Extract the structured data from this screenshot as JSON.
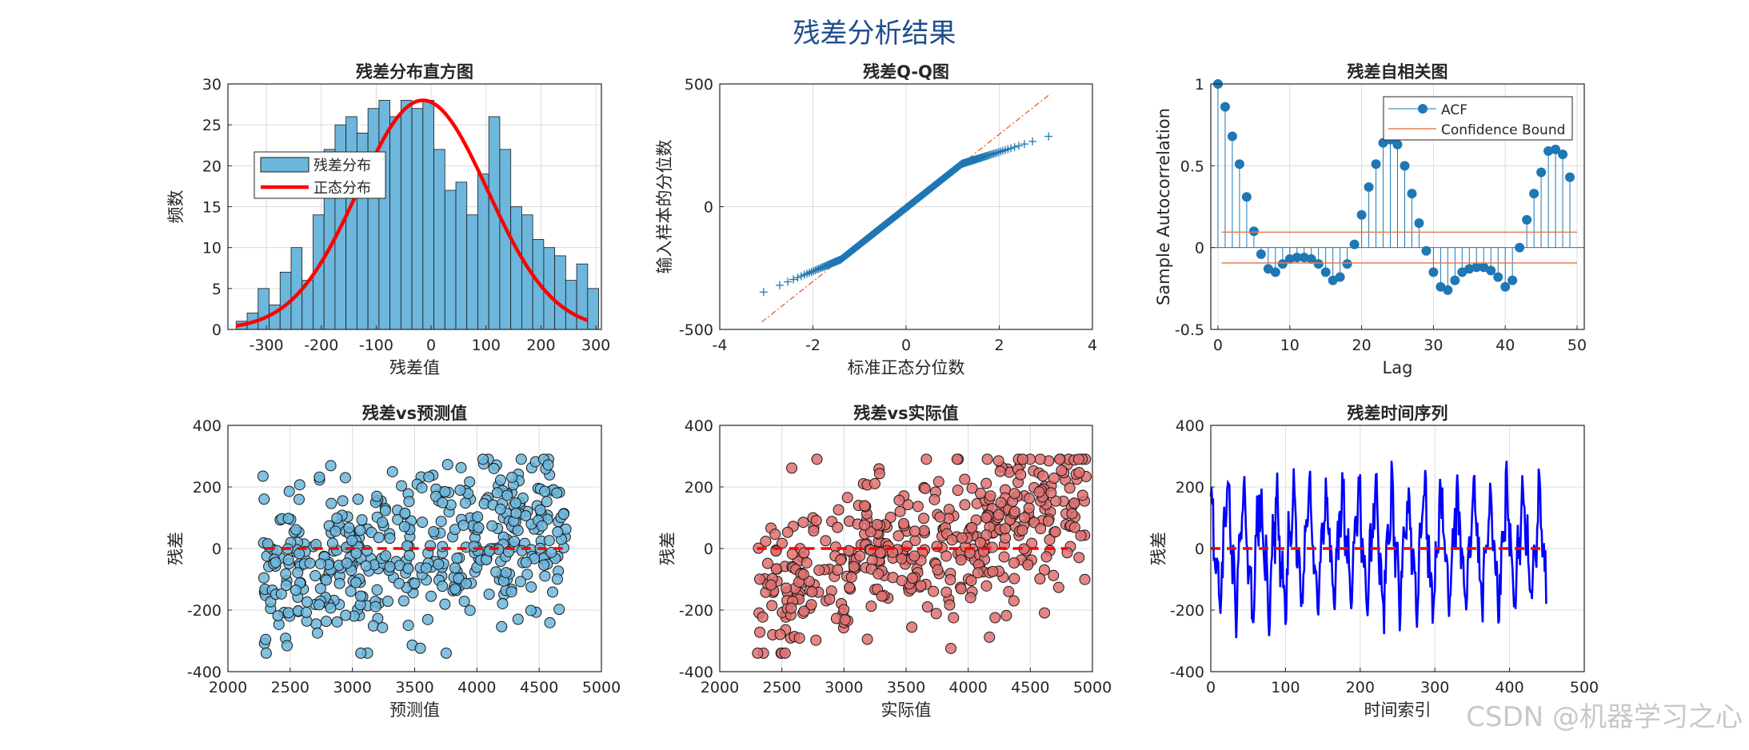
{
  "figure_title": "残差分析结果",
  "watermark": "CSDN @机器学习之心",
  "colors": {
    "hist_fill": "#6db6dc",
    "normal_curve": "#ff0000",
    "qq_marker": "#1f77b4",
    "qq_line": "#e6551d",
    "acf_stem": "#1f77b4",
    "conf_bound": "#e67e50",
    "scatter_pred": "#6db6dc",
    "scatter_actual": "#e07070",
    "zero_line": "#ff0000",
    "ts_line": "#0000ff",
    "title": "#1f4e8c"
  },
  "chart_data": [
    {
      "id": "hist",
      "type": "bar",
      "title": "残差分布直方图",
      "xlabel": "残差值",
      "ylabel": "频数",
      "xlim": [
        -370,
        310
      ],
      "ylim": [
        0,
        30
      ],
      "xticks": [
        -300,
        -200,
        -100,
        0,
        100,
        200,
        300
      ],
      "yticks": [
        0,
        5,
        10,
        15,
        20,
        25,
        30
      ],
      "bin_start": -355,
      "bin_width": 20,
      "counts": [
        1,
        2,
        5,
        3,
        7,
        10,
        6,
        14,
        22,
        25,
        26,
        24,
        27,
        28,
        26,
        28,
        27,
        28,
        22,
        17,
        18,
        14,
        19,
        26,
        22,
        15,
        14,
        11,
        10,
        9,
        6,
        8,
        5
      ],
      "normal": {
        "mean": -15,
        "peak": 28,
        "sd": 118
      },
      "legend": [
        "残差分布",
        "正态分布"
      ]
    },
    {
      "id": "qq",
      "type": "scatter",
      "title": "残差Q-Q图",
      "xlabel": "标准正态分位数",
      "ylabel": "输入样本的分位数",
      "xlim": [
        -4,
        4
      ],
      "ylim": [
        -500,
        500
      ],
      "xticks": [
        -4,
        -2,
        0,
        2,
        4
      ],
      "yticks": [
        -500,
        0,
        500
      ],
      "ref_line": {
        "slope": 150,
        "intercept": -5
      }
    },
    {
      "id": "acf",
      "type": "stem",
      "title": "残差自相关图",
      "xlabel": "Lag",
      "ylabel": "Sample Autocorrelation",
      "xlim": [
        -1,
        51
      ],
      "ylim": [
        -0.5,
        1
      ],
      "xticks": [
        0,
        10,
        20,
        30,
        40,
        50
      ],
      "yticks": [
        -0.5,
        0,
        0.5,
        1
      ],
      "values": [
        1.0,
        0.86,
        0.68,
        0.51,
        0.31,
        0.1,
        -0.04,
        -0.13,
        -0.15,
        -0.1,
        -0.07,
        -0.06,
        -0.06,
        -0.07,
        -0.1,
        -0.15,
        -0.2,
        -0.18,
        -0.1,
        0.02,
        0.2,
        0.37,
        0.51,
        0.64,
        0.66,
        0.63,
        0.5,
        0.33,
        0.15,
        -0.02,
        -0.15,
        -0.24,
        -0.26,
        -0.2,
        -0.15,
        -0.13,
        -0.12,
        -0.12,
        -0.14,
        -0.18,
        -0.24,
        -0.2,
        0.0,
        0.17,
        0.33,
        0.46,
        0.59,
        0.6,
        0.57,
        0.43
      ],
      "conf_bound": 0.094,
      "legend": [
        "ACF",
        "Confidence Bound"
      ]
    },
    {
      "id": "pred",
      "type": "scatter",
      "title": "残差vs预测值",
      "xlabel": "预测值",
      "ylabel": "残差",
      "xlim": [
        2000,
        5000
      ],
      "ylim": [
        -400,
        400
      ],
      "xticks": [
        2000,
        2500,
        3000,
        3500,
        4000,
        4500,
        5000
      ],
      "yticks": [
        -400,
        -200,
        0,
        200,
        400
      ],
      "zero_line_x": [
        2300,
        4700
      ]
    },
    {
      "id": "actual",
      "type": "scatter",
      "title": "残差vs实际值",
      "xlabel": "实际值",
      "ylabel": "残差",
      "xlim": [
        2000,
        5000
      ],
      "ylim": [
        -400,
        400
      ],
      "xticks": [
        2000,
        2500,
        3000,
        3500,
        4000,
        4500,
        5000
      ],
      "yticks": [
        -400,
        -200,
        0,
        200,
        400
      ],
      "zero_line_x": [
        2300,
        4800
      ]
    },
    {
      "id": "ts",
      "type": "line",
      "title": "残差时间序列",
      "xlabel": "时间索引",
      "ylabel": "残差",
      "xlim": [
        0,
        500
      ],
      "ylim": [
        -400,
        400
      ],
      "xticks": [
        0,
        100,
        200,
        300,
        400,
        500
      ],
      "yticks": [
        -400,
        -200,
        0,
        200,
        400
      ],
      "n": 450
    }
  ]
}
